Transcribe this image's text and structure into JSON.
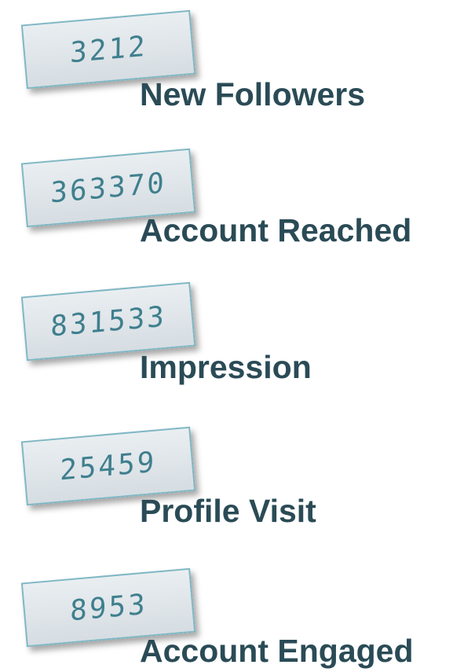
{
  "items": [
    {
      "value": 3212,
      "label": "New Followers"
    },
    {
      "value": 363370,
      "label": "Account Reached"
    },
    {
      "value": 831533,
      "label": "Impression"
    },
    {
      "value": 25459,
      "label": "Profile Visit"
    },
    {
      "value": 8953,
      "label": "Account Engaged"
    }
  ]
}
